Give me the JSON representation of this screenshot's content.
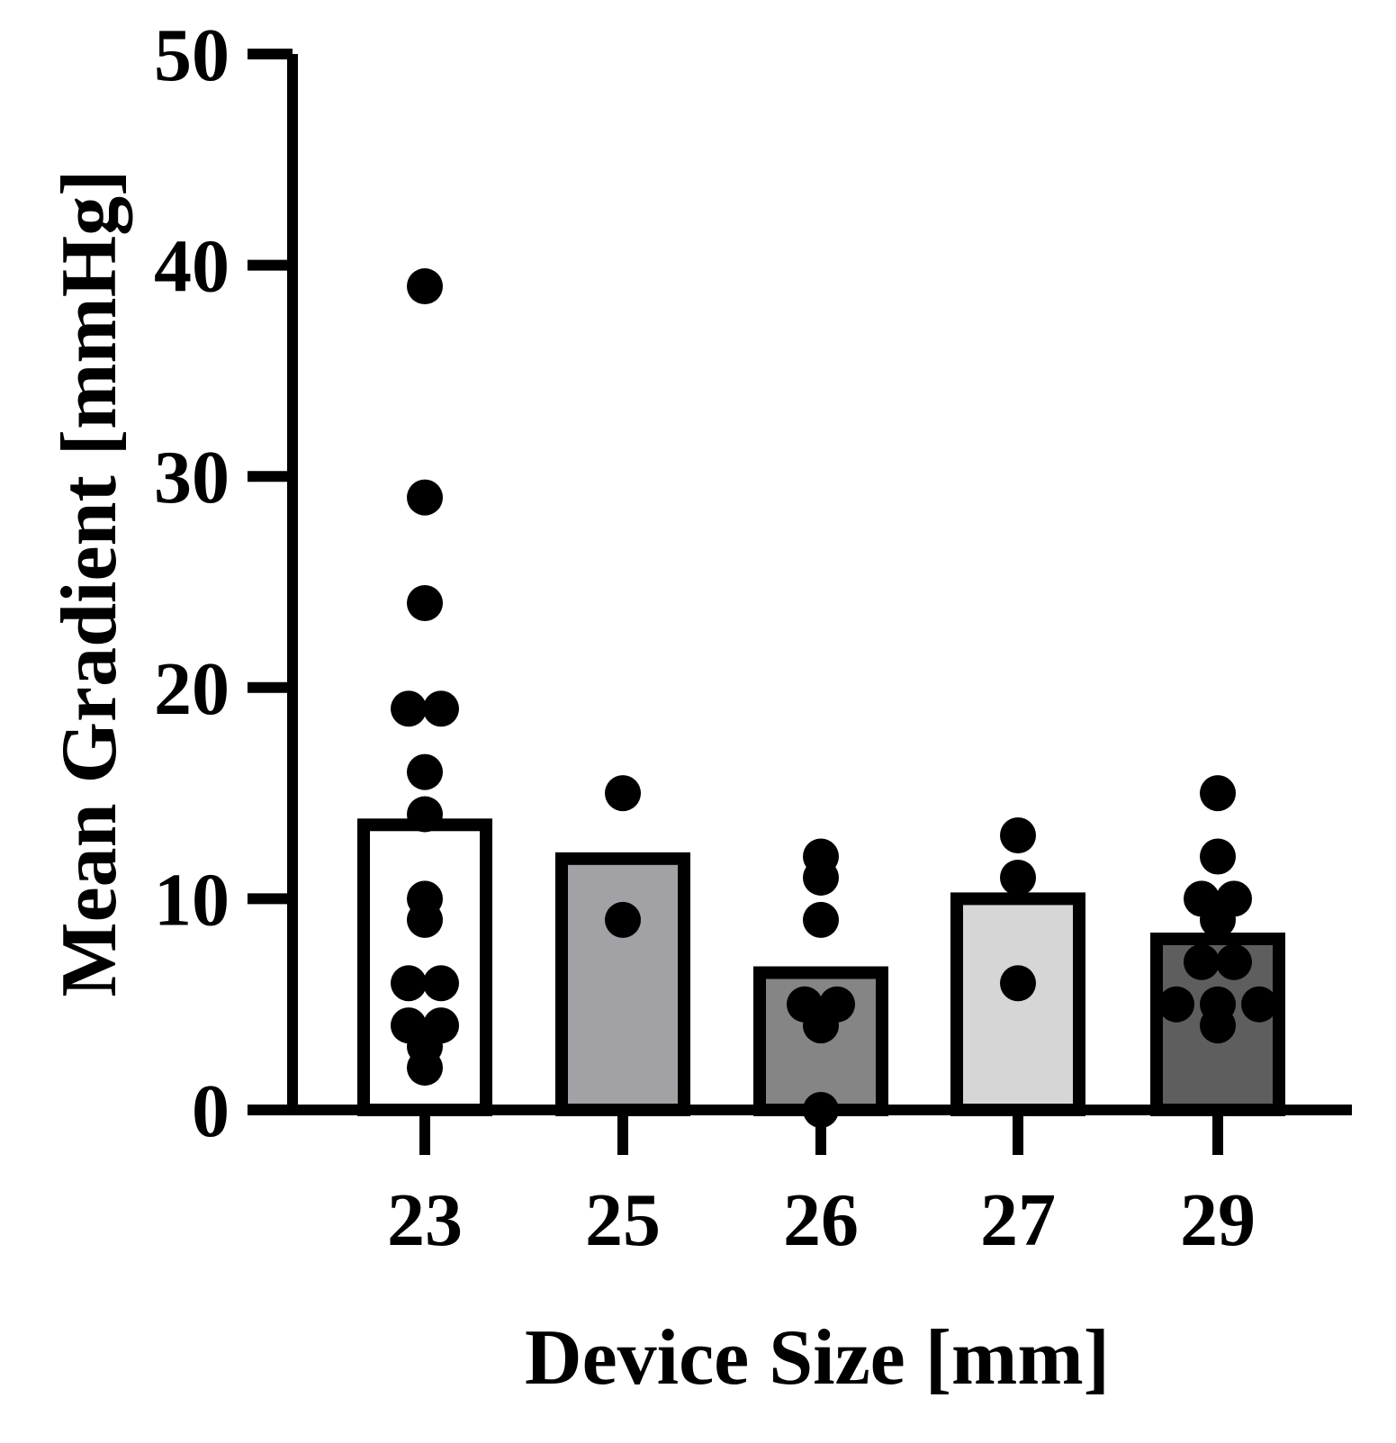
{
  "chart_data": {
    "type": "bar",
    "xlabel": "Device Size [mm]",
    "ylabel": "Mean Gradient [mmHg]",
    "ylim": [
      0,
      50
    ],
    "yticks": [
      0,
      10,
      20,
      30,
      40,
      50
    ],
    "categories": [
      "23",
      "25",
      "26",
      "27",
      "29"
    ],
    "values": [
      13.5,
      11.9,
      6.5,
      10.0,
      8.1
    ],
    "bar_colors": [
      "#ffffff",
      "#a2a2a6",
      "#858585",
      "#d6d6d6",
      "#5e5e5e"
    ],
    "points": [
      [
        39,
        29,
        24,
        19,
        19,
        16,
        14,
        10,
        9,
        6,
        6,
        4,
        4,
        3,
        2
      ],
      [
        15,
        9
      ],
      [
        12,
        11,
        9,
        5,
        5,
        4,
        0
      ],
      [
        13,
        11,
        6
      ],
      [
        15,
        12,
        10,
        10,
        9,
        7,
        7,
        5,
        5,
        5,
        4
      ]
    ],
    "grid": false,
    "legend": "none"
  }
}
